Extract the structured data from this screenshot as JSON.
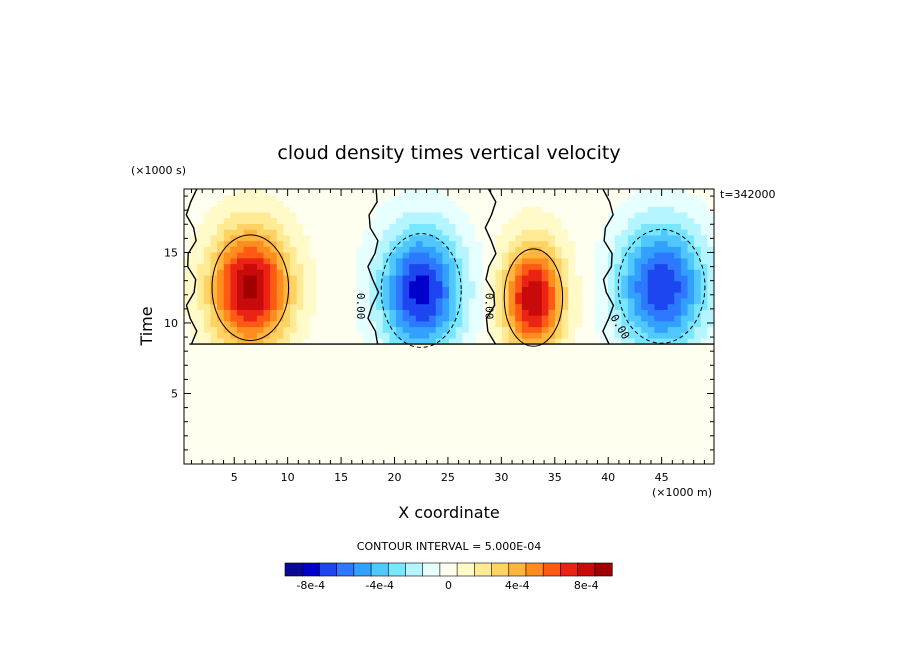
{
  "chart_data": {
    "type": "heatmap",
    "title": "cloud density times vertical velocity",
    "xlabel": "X coordinate",
    "ylabel": "Time",
    "x_units": "(×1000 m)",
    "y_units": "(×1000 s)",
    "time_stamp": "t=342000",
    "xlim": [
      0,
      50
    ],
    "ylim": [
      0,
      19.5
    ],
    "x_ticks": [
      5,
      10,
      15,
      20,
      25,
      30,
      35,
      40,
      45
    ],
    "y_ticks": [
      5,
      10,
      15
    ],
    "cloud_base_time": 8.5,
    "contour_interval_text": "CONTOUR INTERVAL = 5.000E-04",
    "contour_line_labels": [
      "0.00",
      "0.00",
      "0.00"
    ],
    "colorbar": {
      "colors": [
        "#0a0a96",
        "#0000cd",
        "#1e46f0",
        "#2d78ff",
        "#32a0ff",
        "#50c8ff",
        "#78e6ff",
        "#b4f5ff",
        "#e6ffff",
        "#fffff0",
        "#fffac8",
        "#ffeb96",
        "#ffd264",
        "#ffb43c",
        "#ff8c1e",
        "#ff5a14",
        "#eb2314",
        "#c80a0a",
        "#a00000"
      ],
      "tick_labels": [
        "-8e-4",
        "-4e-4",
        "0",
        "4e-4",
        "8e-4"
      ],
      "tick_values": [
        -0.0008,
        -0.0004,
        0,
        0.0004,
        0.0008
      ],
      "range": [
        -0.00095,
        0.00095
      ]
    },
    "cells": [
      {
        "x": 6.5,
        "y": 12.5,
        "peak": 0.0009,
        "rx": 4.6,
        "ry": 5.2
      },
      {
        "x": 22.5,
        "y": 12.3,
        "peak": -0.0008,
        "rx": 4.8,
        "ry": 5.6
      },
      {
        "x": 33.0,
        "y": 11.8,
        "peak": 0.00085,
        "rx": 3.5,
        "ry": 4.8
      },
      {
        "x": 45.0,
        "y": 12.6,
        "peak": -0.00075,
        "rx": 5.2,
        "ry": 5.6
      }
    ]
  }
}
